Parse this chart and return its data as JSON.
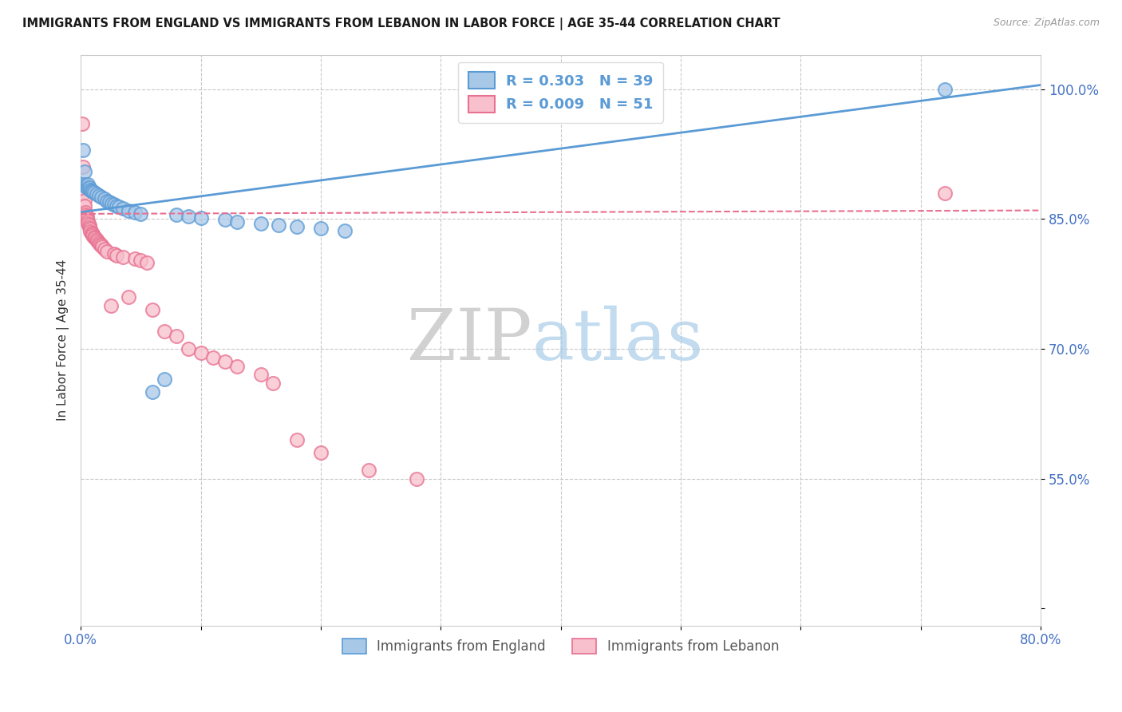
{
  "title": "IMMIGRANTS FROM ENGLAND VS IMMIGRANTS FROM LEBANON IN LABOR FORCE | AGE 35-44 CORRELATION CHART",
  "source": "Source: ZipAtlas.com",
  "ylabel": "In Labor Force | Age 35-44",
  "xlim": [
    0.0,
    0.8
  ],
  "ylim": [
    0.38,
    1.04
  ],
  "xticks": [
    0.0,
    0.1,
    0.2,
    0.3,
    0.4,
    0.5,
    0.6,
    0.7,
    0.8
  ],
  "xticklabels": [
    "0.0%",
    "",
    "",
    "",
    "",
    "",
    "",
    "",
    "80.0%"
  ],
  "yticks": [
    0.4,
    0.55,
    0.7,
    0.85,
    1.0
  ],
  "yticklabels": [
    "",
    "55.0%",
    "70.0%",
    "85.0%",
    "100.0%"
  ],
  "england_color": "#a8c8e8",
  "england_edge": "#5b9bd5",
  "lebanon_color": "#f8c0cc",
  "lebanon_edge": "#e87090",
  "england_R": 0.303,
  "england_N": 39,
  "lebanon_R": 0.009,
  "lebanon_N": 51,
  "legend_label_england": "Immigrants from England",
  "legend_label_lebanon": "Immigrants from Lebanon",
  "watermark_zip": "ZIP",
  "watermark_atlas": "atlas",
  "england_x": [
    0.002,
    0.003,
    0.003,
    0.004,
    0.005,
    0.006,
    0.006,
    0.007,
    0.008,
    0.009,
    0.01,
    0.011,
    0.013,
    0.015,
    0.017,
    0.02,
    0.022,
    0.024,
    0.026,
    0.028,
    0.03,
    0.032,
    0.035,
    0.04,
    0.045,
    0.05,
    0.06,
    0.07,
    0.08,
    0.09,
    0.1,
    0.12,
    0.13,
    0.15,
    0.165,
    0.18,
    0.2,
    0.22,
    0.72
  ],
  "england_y": [
    0.93,
    0.905,
    0.89,
    0.888,
    0.887,
    0.89,
    0.885,
    0.886,
    0.884,
    0.883,
    0.882,
    0.881,
    0.879,
    0.877,
    0.875,
    0.873,
    0.871,
    0.87,
    0.868,
    0.867,
    0.865,
    0.864,
    0.862,
    0.86,
    0.858,
    0.856,
    0.65,
    0.665,
    0.855,
    0.853,
    0.851,
    0.849,
    0.847,
    0.845,
    0.843,
    0.841,
    0.839,
    0.837,
    1.0
  ],
  "lebanon_x": [
    0.001,
    0.002,
    0.002,
    0.003,
    0.003,
    0.004,
    0.004,
    0.005,
    0.005,
    0.006,
    0.006,
    0.007,
    0.007,
    0.008,
    0.008,
    0.009,
    0.01,
    0.01,
    0.011,
    0.012,
    0.013,
    0.014,
    0.015,
    0.016,
    0.017,
    0.018,
    0.02,
    0.022,
    0.025,
    0.028,
    0.03,
    0.035,
    0.04,
    0.045,
    0.05,
    0.055,
    0.06,
    0.07,
    0.08,
    0.09,
    0.1,
    0.11,
    0.12,
    0.13,
    0.15,
    0.16,
    0.18,
    0.2,
    0.24,
    0.28,
    0.72
  ],
  "lebanon_y": [
    0.96,
    0.91,
    0.88,
    0.872,
    0.865,
    0.858,
    0.855,
    0.853,
    0.85,
    0.848,
    0.845,
    0.843,
    0.84,
    0.838,
    0.836,
    0.834,
    0.833,
    0.831,
    0.829,
    0.828,
    0.826,
    0.825,
    0.823,
    0.821,
    0.82,
    0.818,
    0.815,
    0.813,
    0.75,
    0.81,
    0.808,
    0.806,
    0.76,
    0.804,
    0.802,
    0.8,
    0.745,
    0.72,
    0.715,
    0.7,
    0.695,
    0.69,
    0.685,
    0.68,
    0.67,
    0.66,
    0.595,
    0.58,
    0.56,
    0.55,
    0.88
  ],
  "eng_trend_x0": 0.0,
  "eng_trend_y0": 0.858,
  "eng_trend_x1": 0.8,
  "eng_trend_y1": 1.005,
  "leb_trend_x0": 0.0,
  "leb_trend_y0": 0.856,
  "leb_trend_x1": 0.8,
  "leb_trend_y1": 0.86
}
